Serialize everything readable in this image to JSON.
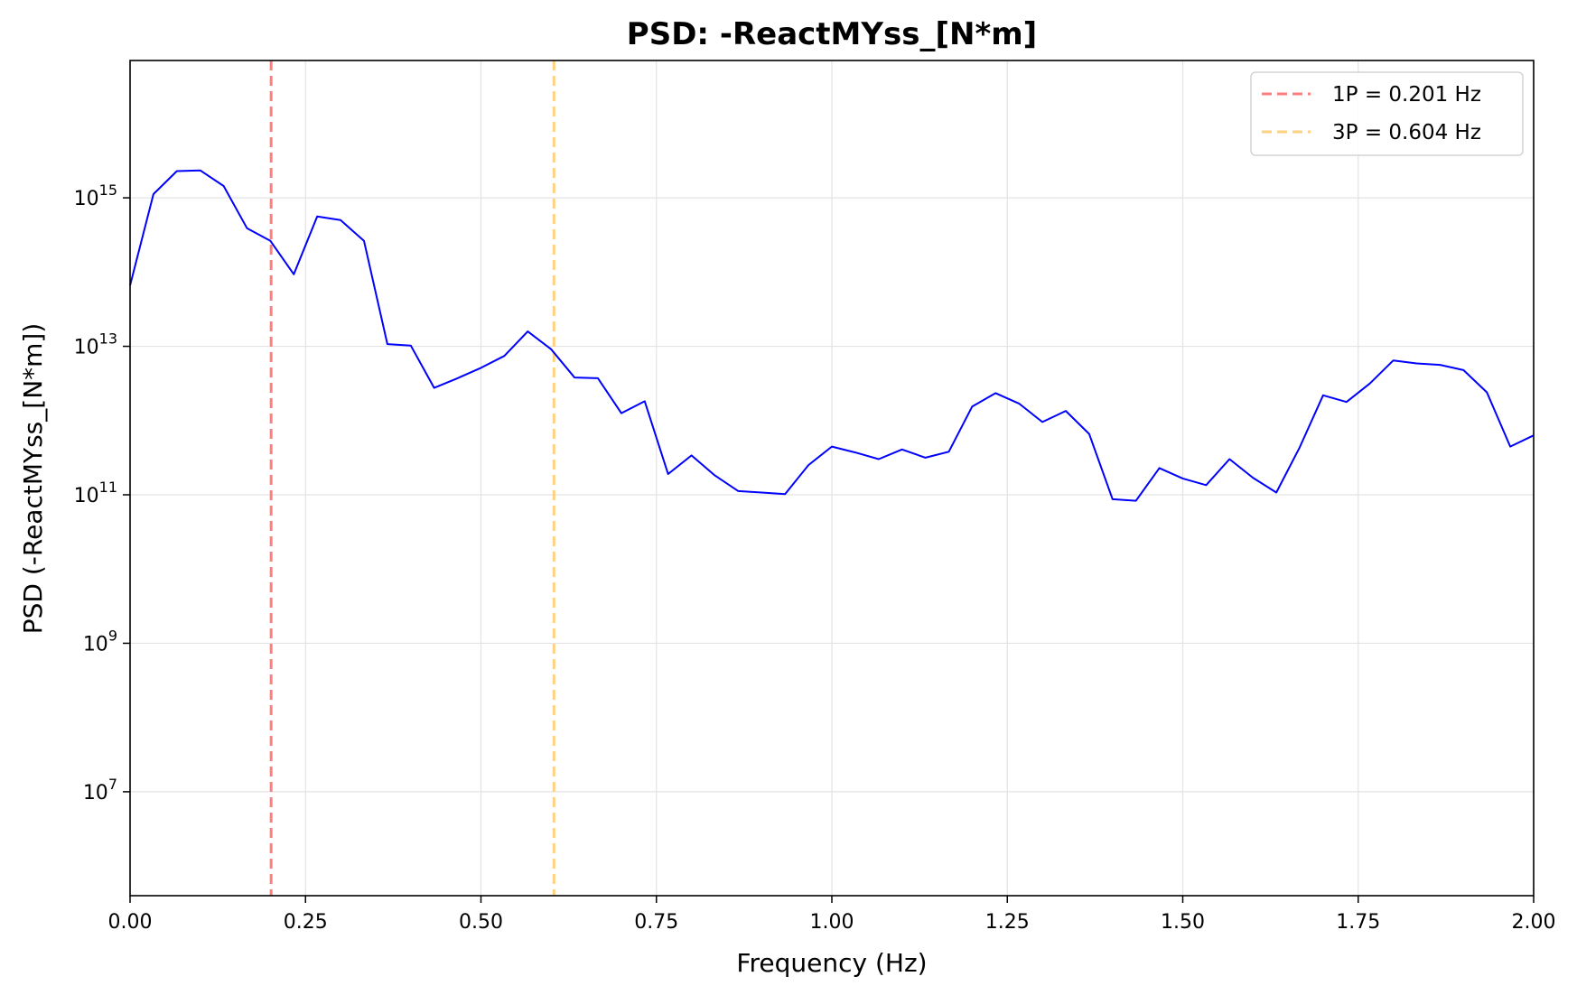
{
  "chart_data": {
    "type": "line",
    "title": "PSD: -ReactMYss_[N*m]",
    "xlabel": "Frequency (Hz)",
    "ylabel": "PSD (-ReactMYss_[N*m])",
    "xlim": [
      0,
      2
    ],
    "ylim_log10": [
      5.6,
      16.85
    ],
    "yscale": "log",
    "grid": true,
    "legend_position": "top-right",
    "x_ticks": [
      {
        "value": 0,
        "label": "0.00"
      },
      {
        "value": 0.25,
        "label": "0.25"
      },
      {
        "value": 0.5,
        "label": "0.50"
      },
      {
        "value": 0.75,
        "label": "0.75"
      },
      {
        "value": 1.0,
        "label": "1.00"
      },
      {
        "value": 1.25,
        "label": "1.25"
      },
      {
        "value": 1.5,
        "label": "1.50"
      },
      {
        "value": 1.75,
        "label": "1.75"
      },
      {
        "value": 2.0,
        "label": "2.00"
      }
    ],
    "y_ticks": [
      {
        "exp": 7,
        "base": "10",
        "sup": "7"
      },
      {
        "exp": 9,
        "base": "10",
        "sup": "9"
      },
      {
        "exp": 11,
        "base": "10",
        "sup": "11"
      },
      {
        "exp": 13,
        "base": "10",
        "sup": "13"
      },
      {
        "exp": 15,
        "base": "10",
        "sup": "15"
      }
    ],
    "series": [
      {
        "color": "#0000ff",
        "x": [
          0,
          0.0333,
          0.0667,
          0.1,
          0.1333,
          0.1667,
          0.2,
          0.2333,
          0.2667,
          0.3,
          0.3333,
          0.3667,
          0.4,
          0.4333,
          0.4667,
          0.5,
          0.5333,
          0.5667,
          0.6,
          0.6333,
          0.6667,
          0.7,
          0.7333,
          0.7667,
          0.8,
          0.8333,
          0.8667,
          0.9,
          0.9333,
          0.9667,
          1.0,
          1.0333,
          1.0667,
          1.1,
          1.1333,
          1.1667,
          1.2,
          1.2333,
          1.2667,
          1.3,
          1.3333,
          1.3667,
          1.4,
          1.4333,
          1.4667,
          1.5,
          1.5333,
          1.5667,
          1.6,
          1.6333,
          1.6667,
          1.7,
          1.7333,
          1.7667,
          1.8,
          1.8333,
          1.8667,
          1.9,
          1.9333,
          1.9667,
          2.0
        ],
        "y_log10": [
          13.82,
          15.05,
          15.36,
          15.37,
          15.16,
          14.59,
          14.42,
          13.97,
          14.75,
          14.7,
          14.42,
          13.03,
          13.01,
          12.44,
          12.57,
          12.71,
          12.87,
          13.2,
          12.96,
          12.58,
          12.57,
          12.1,
          12.26,
          11.28,
          11.53,
          11.26,
          11.05,
          11.03,
          11.01,
          11.4,
          11.65,
          11.57,
          11.48,
          11.61,
          11.5,
          11.58,
          12.19,
          12.37,
          12.23,
          11.98,
          12.13,
          11.82,
          10.94,
          10.92,
          11.36,
          11.22,
          11.13,
          11.48,
          11.23,
          11.03,
          11.64,
          12.34,
          12.25,
          12.5,
          12.81,
          12.77,
          12.75,
          12.68,
          12.38,
          11.65,
          11.8
        ]
      }
    ],
    "reference_lines": [
      {
        "x": 0.201,
        "label": "1P = 0.201 Hz",
        "color": "#ff7f7f"
      },
      {
        "x": 0.604,
        "label": "3P = 0.604 Hz",
        "color": "#ffd27f"
      }
    ]
  }
}
